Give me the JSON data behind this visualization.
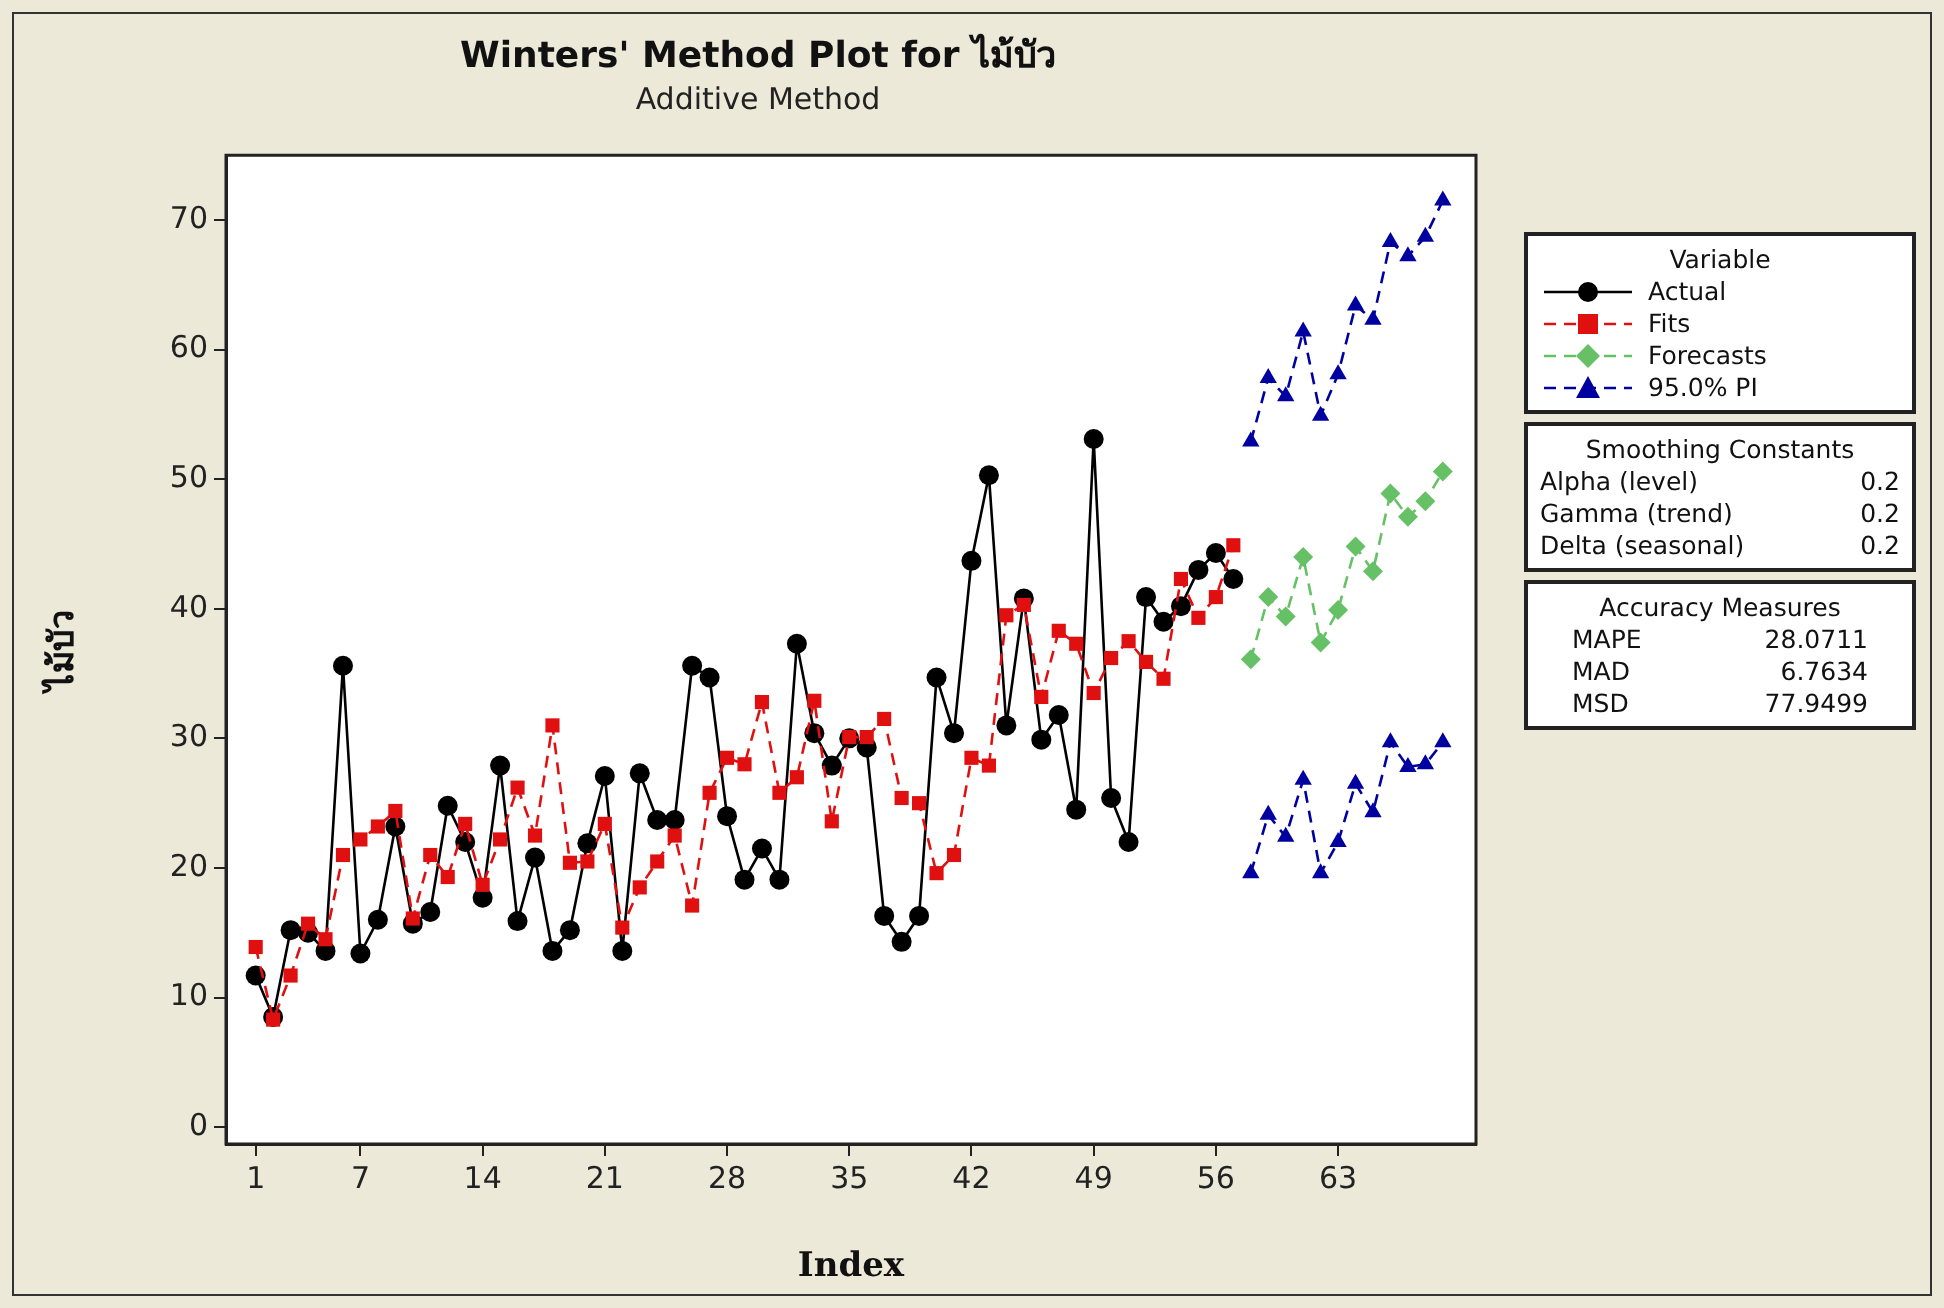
{
  "chart_data": {
    "type": "line",
    "title": "Winters' Method Plot for ไม้บัว",
    "subtitle": "Additive Method",
    "xlabel": "Index",
    "ylabel": "ไม้บัว",
    "legend_title": "Variable",
    "legend": "right",
    "grid": false,
    "xlim": [
      -0.7,
      70.9
    ],
    "xticks": [
      1,
      7,
      14,
      21,
      28,
      35,
      42,
      49,
      56,
      63
    ],
    "ylim": [
      -1.3,
      75
    ],
    "yticks": [
      0,
      10,
      20,
      30,
      40,
      50,
      60,
      70
    ],
    "series": [
      {
        "name": "Actual",
        "color": "#000000",
        "marker": "circle",
        "line_style": "solid",
        "x": [
          1,
          2,
          3,
          4,
          5,
          6,
          7,
          8,
          9,
          10,
          11,
          12,
          13,
          14,
          15,
          16,
          17,
          18,
          19,
          20,
          21,
          22,
          23,
          24,
          25,
          26,
          27,
          28,
          29,
          30,
          31,
          32,
          33,
          34,
          35,
          36,
          37,
          38,
          39,
          40,
          41,
          42,
          43,
          44,
          45,
          46,
          47,
          48,
          49,
          50,
          51,
          52,
          53,
          54,
          55,
          56,
          57
        ],
        "values": [
          11.7,
          8.5,
          15.2,
          15,
          13.6,
          35.6,
          13.4,
          16,
          23.2,
          15.7,
          16.6,
          24.8,
          22,
          17.7,
          27.9,
          15.9,
          20.8,
          13.6,
          15.2,
          21.9,
          27.1,
          13.6,
          27.3,
          23.7,
          23.7,
          35.6,
          34.7,
          24,
          19.1,
          21.5,
          19.1,
          37.3,
          30.4,
          27.9,
          30,
          29.3,
          16.3,
          14.3,
          16.3,
          34.7,
          30.4,
          43.7,
          50.3,
          31,
          40.8,
          29.9,
          31.8,
          24.5,
          53.1,
          25.4,
          22,
          40.9,
          39,
          40.2,
          43,
          44.3,
          42.3
        ]
      },
      {
        "name": "Fits",
        "color": "#e01010",
        "marker": "square",
        "line_style": "dashed",
        "x": [
          1,
          2,
          3,
          4,
          5,
          6,
          7,
          8,
          9,
          10,
          11,
          12,
          13,
          14,
          15,
          16,
          17,
          18,
          19,
          20,
          21,
          22,
          23,
          24,
          25,
          26,
          27,
          28,
          29,
          30,
          31,
          32,
          33,
          34,
          35,
          36,
          37,
          38,
          39,
          40,
          41,
          42,
          43,
          44,
          45,
          46,
          47,
          48,
          49,
          50,
          51,
          52,
          53,
          54,
          55,
          56,
          57
        ],
        "values": [
          13.9,
          8.3,
          11.7,
          15.7,
          14.5,
          21,
          22.2,
          23.2,
          24.4,
          16.1,
          21,
          19.3,
          23.4,
          18.7,
          22.2,
          26.2,
          22.5,
          31,
          20.4,
          20.5,
          23.4,
          15.4,
          18.5,
          20.5,
          22.5,
          17.1,
          25.8,
          28.5,
          28,
          32.8,
          25.8,
          27,
          32.9,
          23.6,
          30.1,
          30.1,
          31.5,
          25.4,
          25,
          19.6,
          21,
          28.5,
          27.9,
          39.5,
          40.3,
          33.2,
          38.3,
          37.3,
          33.5,
          36.2,
          37.5,
          35.9,
          34.6,
          42.3,
          39.3,
          40.9,
          44.9
        ]
      },
      {
        "name": "Forecasts",
        "color": "#66c166",
        "marker": "diamond",
        "line_style": "dashed",
        "x": [
          58,
          59,
          60,
          61,
          62,
          63,
          64,
          65,
          66,
          67,
          68,
          69
        ],
        "values": [
          36.1,
          40.9,
          39.4,
          44,
          37.4,
          39.9,
          44.8,
          42.9,
          48.9,
          47.1,
          48.3,
          50.6
        ]
      },
      {
        "name": "95.0% PI",
        "color": "#0000a0",
        "marker": "triangle",
        "line_style": "dashed",
        "x": [
          58,
          59,
          60,
          61,
          62,
          63,
          64,
          65,
          66,
          67,
          68,
          69
        ],
        "values": [
          52.9,
          57.8,
          56.4,
          61.4,
          54.9,
          58.1,
          63.4,
          62.3,
          68.3,
          67.2,
          68.7,
          71.5
        ]
      },
      {
        "color": "#0000a0",
        "marker": "triangle",
        "line_style": "dashed",
        "x": [
          58,
          59,
          60,
          61,
          62,
          63,
          64,
          65,
          66,
          67,
          68,
          69
        ],
        "values": [
          19.6,
          24.1,
          22.4,
          26.8,
          19.6,
          22,
          26.5,
          24.3,
          29.7,
          27.8,
          28,
          29.7
        ]
      }
    ],
    "annotations": [
      "Smoothing Constants",
      "Alpha (level)",
      "0.2",
      "Gamma (trend)",
      "0.2",
      "Delta (seasonal)",
      "0.2",
      "Accuracy Measures",
      "MAPE",
      "28.0711",
      "MAD",
      "6.7634",
      "MSD",
      "77.9499"
    ]
  }
}
